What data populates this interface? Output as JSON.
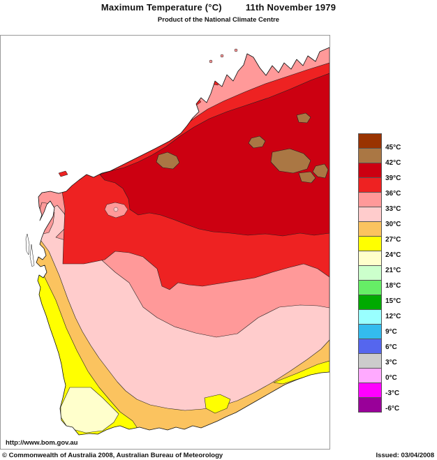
{
  "header": {
    "title": "Maximum Temperature (°C)",
    "date": "11th November 1979",
    "subtitle": "Product of the National Climate Centre"
  },
  "legend": {
    "boundary_labels": [
      "45°C",
      "42°C",
      "39°C",
      "36°C",
      "33°C",
      "30°C",
      "27°C",
      "24°C",
      "21°C",
      "18°C",
      "15°C",
      "12°C",
      "9°C",
      "6°C",
      "3°C",
      "0°C",
      "-3°C",
      "-6°C"
    ],
    "swatch_colors": [
      "#993300",
      "#AA7744",
      "#CC0011",
      "#EE2222",
      "#FF9999",
      "#FFCCCC",
      "#FBC35F",
      "#FFFF00",
      "#FFFFCC",
      "#CCFFCC",
      "#66EE66",
      "#00AA00",
      "#99FFFF",
      "#33BBEE",
      "#5566EE",
      "#CCCCCC",
      "#FFAAFF",
      "#FF00FF",
      "#990099"
    ],
    "band_names": [
      "above 45",
      "42 to 45",
      "39 to 42",
      "36 to 39",
      "33 to 36",
      "30 to 33",
      "27 to 30",
      "24 to 27",
      "21 to 24",
      "18 to 21",
      "15 to 18",
      "12 to 15",
      "9 to 12",
      "6 to 9",
      "3 to 6",
      "0 to 3",
      "-3 to 0",
      "-6 to -3",
      "below -6"
    ]
  },
  "map": {
    "ocean_color": "#FFFFFF",
    "coastline_color": "#111111",
    "contour_color": "#222222",
    "frame_color": "#999999"
  },
  "footer": {
    "url": "http://www.bom.gov.au",
    "copyright": "© Commonwealth of Australia 2008, Australian Bureau of Meteorology",
    "issued": "Issued: 03/04/2008"
  }
}
